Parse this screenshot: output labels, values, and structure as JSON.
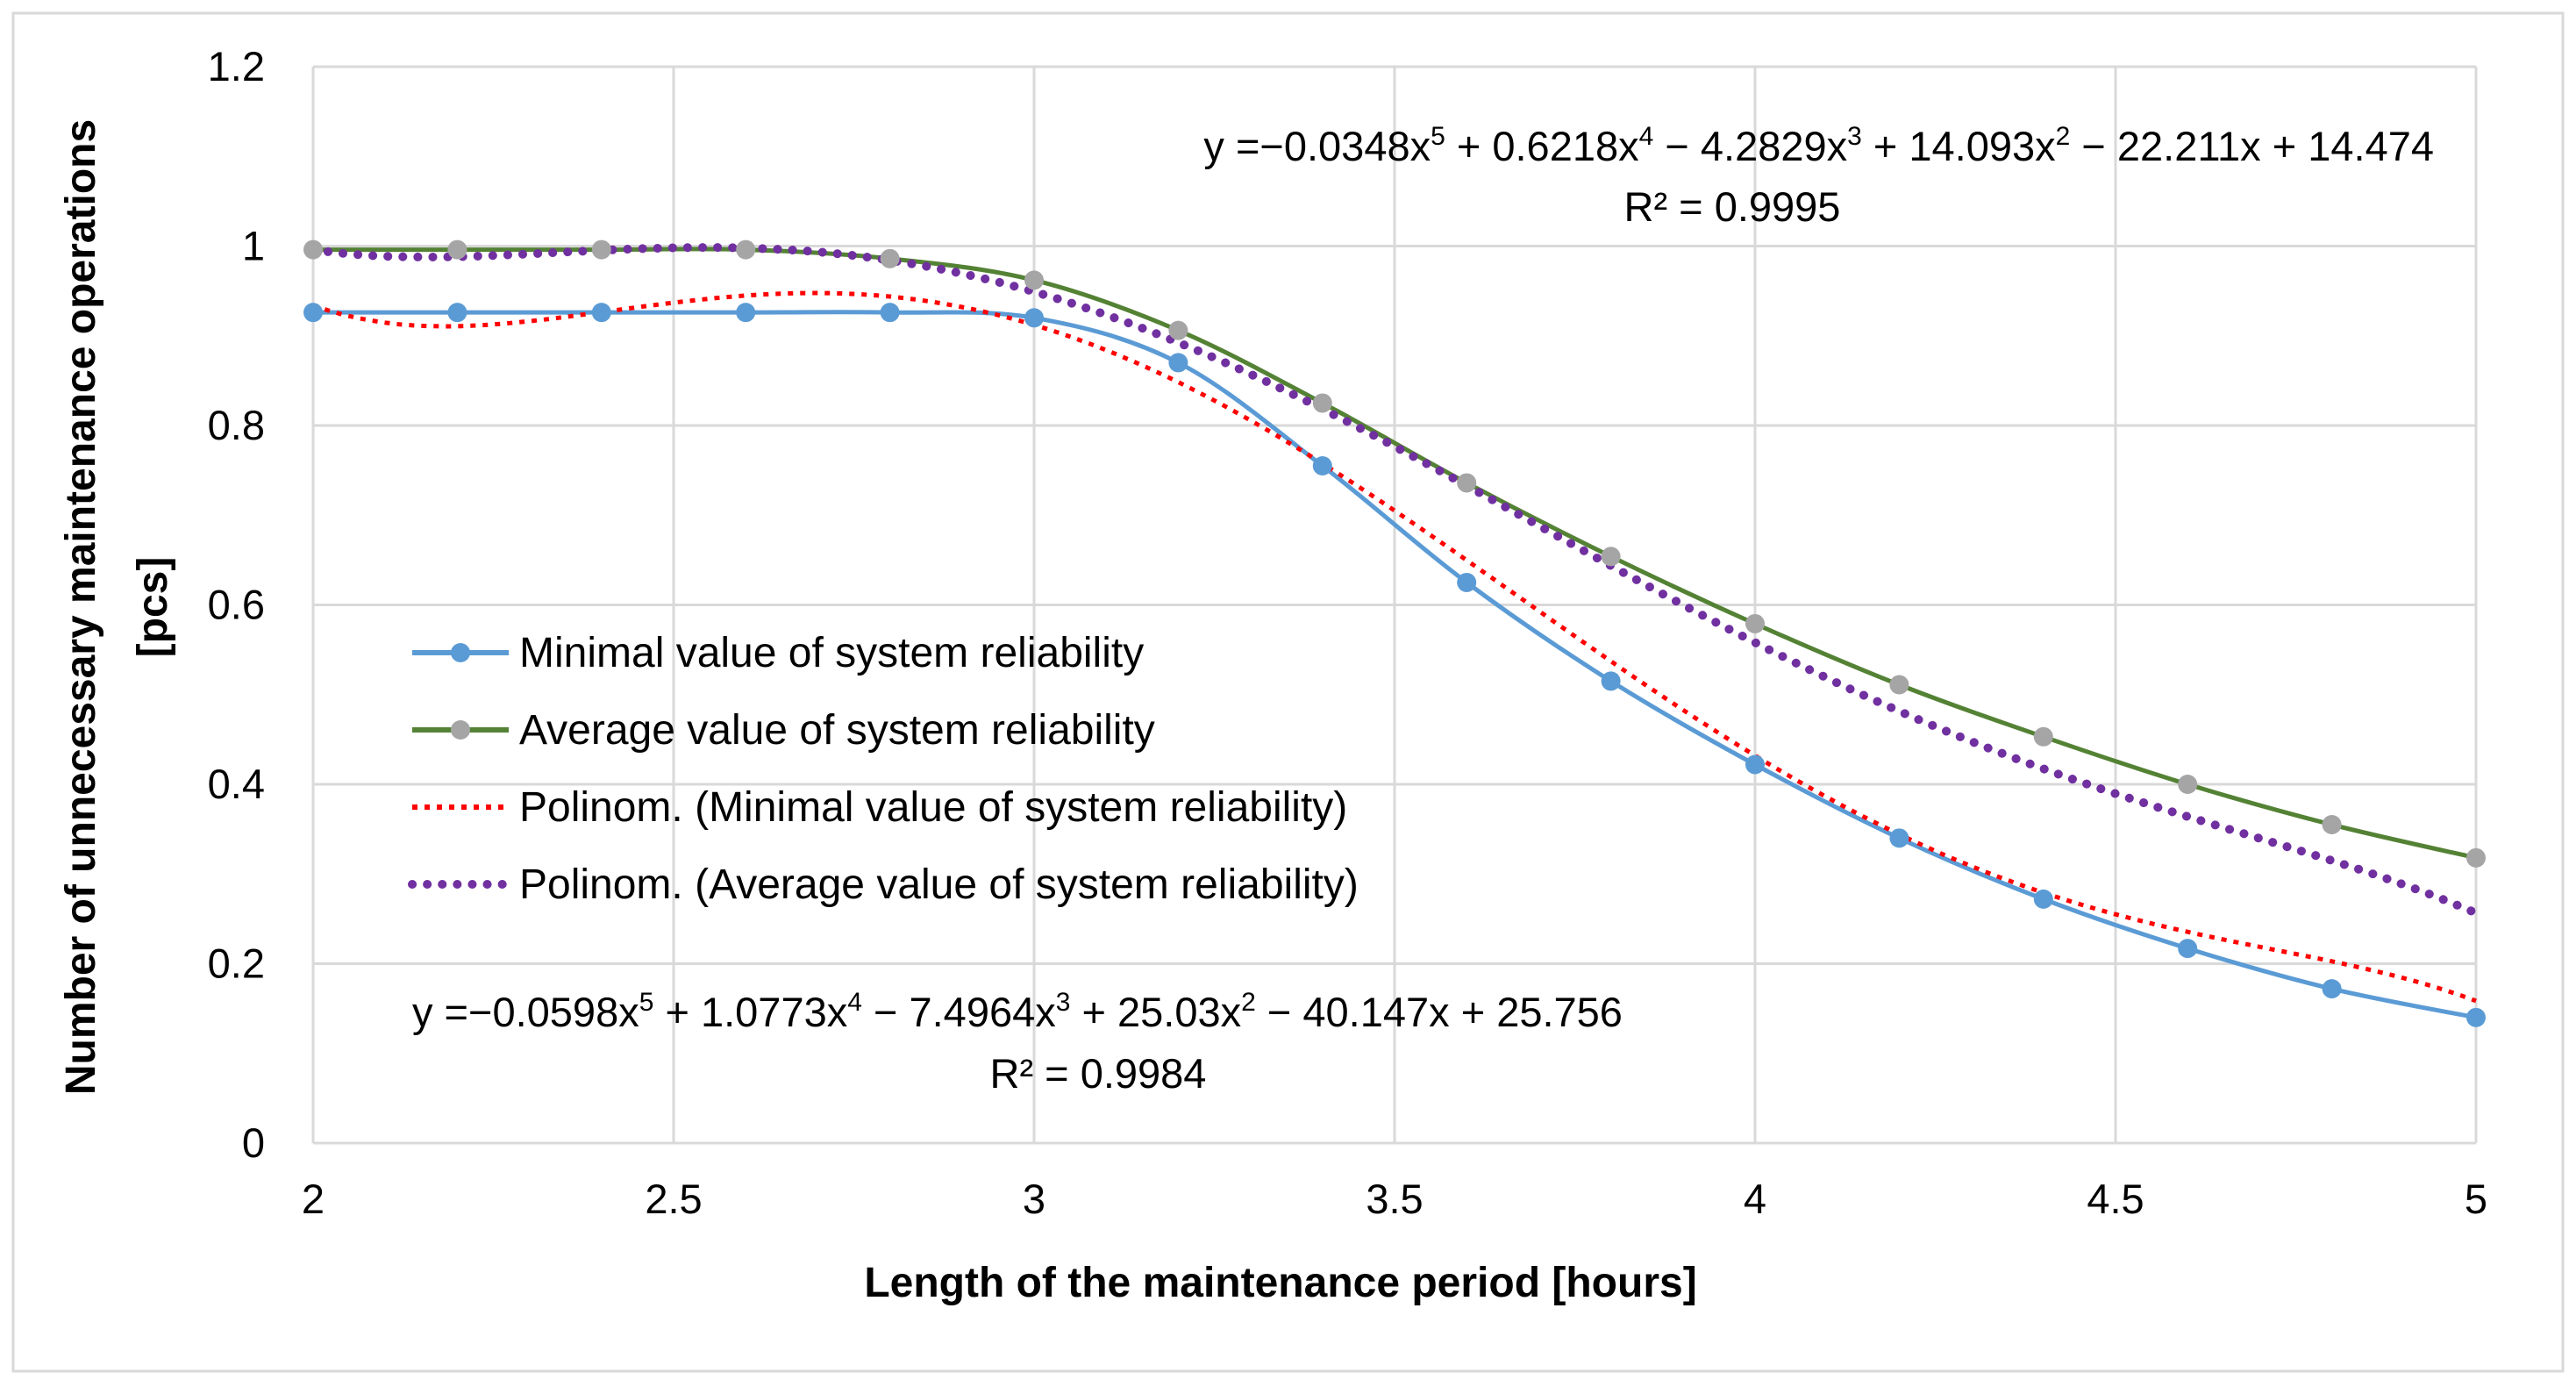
{
  "chart_data": {
    "type": "line",
    "title": "",
    "xlabel": "Length of the maintenance period [hours]",
    "ylabel_lines": [
      "Number of unnecessary maintenance operations",
      "[pcs]"
    ],
    "xlim": [
      2,
      5
    ],
    "ylim": [
      0,
      1.2
    ],
    "x_ticks": [
      2,
      2.5,
      3,
      3.5,
      4,
      4.5,
      5
    ],
    "x_tick_labels": [
      "2",
      "2.5",
      "3",
      "3.5",
      "4",
      "4.5",
      "5"
    ],
    "y_ticks": [
      0,
      0.2,
      0.4,
      0.6,
      0.8,
      1,
      1.2
    ],
    "y_tick_labels": [
      "0",
      "0.2",
      "0.4",
      "0.6",
      "0.8",
      "1",
      "1.2"
    ],
    "grid": true,
    "x": [
      2,
      2.2,
      2.4,
      2.6,
      2.8,
      3,
      3.2,
      3.4,
      3.6,
      3.8,
      4,
      4.2,
      4.4,
      4.6,
      4.8,
      5
    ],
    "series": [
      {
        "name": "Minimal value of system reliability",
        "color": "#5B9BD5",
        "style": "solid-markers",
        "values": [
          0.926,
          0.926,
          0.926,
          0.926,
          0.926,
          0.92,
          0.87,
          0.755,
          0.625,
          0.515,
          0.422,
          0.34,
          0.272,
          0.217,
          0.172,
          0.14
        ]
      },
      {
        "name": "Average value of system reliability",
        "color": "#548235",
        "marker_color": "#A5A5A5",
        "style": "solid-markers",
        "values": [
          0.996,
          0.996,
          0.996,
          0.996,
          0.986,
          0.962,
          0.906,
          0.825,
          0.736,
          0.654,
          0.579,
          0.511,
          0.453,
          0.4,
          0.355,
          0.318
        ]
      },
      {
        "name": "Polinom. (Minimal value of system reliability)",
        "color": "#FF0000",
        "style": "dotted",
        "coefficients": [
          25.756,
          -40.147,
          25.03,
          -7.4964,
          1.0773,
          -0.0598
        ]
      },
      {
        "name": "Polinom. (Average value of system reliability)",
        "color": "#7030A0",
        "style": "dotted",
        "coefficients": [
          14.474,
          -22.211,
          14.093,
          -4.2829,
          0.6218,
          -0.0348
        ]
      }
    ],
    "annotations": [
      {
        "id": "avg",
        "equation": [
          "y =−0.0348x",
          "5",
          " + 0.6218x",
          "4",
          " − 4.2829x",
          "3",
          " + 14.093x",
          "2",
          " − 22.211x + 14.474"
        ],
        "r2": "R² = 0.9995"
      },
      {
        "id": "min",
        "equation": [
          "y =−0.0598x",
          "5",
          " + 1.0773x",
          "4",
          " − 7.4964x",
          "3",
          " + 25.03x",
          "2",
          " − 40.147x + 25.756"
        ],
        "r2": "R² = 0.9984"
      }
    ],
    "legend_position": "left-middle"
  }
}
